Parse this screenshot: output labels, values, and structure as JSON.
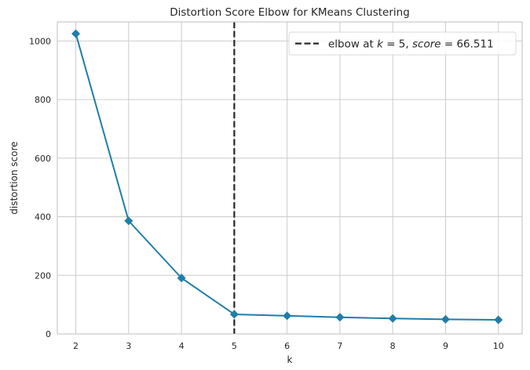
{
  "chart_data": {
    "type": "line",
    "title": "Distortion Score Elbow for KMeans Clustering",
    "xlabel": "k",
    "ylabel": "distortion score",
    "x": [
      2,
      3,
      4,
      5,
      6,
      7,
      8,
      9,
      10
    ],
    "series": [
      {
        "values": [
          1025,
          386,
          191,
          67,
          62,
          57,
          53,
          50,
          48
        ],
        "color": "#1f7ea8",
        "marker": "diamond"
      }
    ],
    "xlim": [
      1.65,
      10.45
    ],
    "ylim": [
      0,
      1065
    ],
    "xticks": [
      2,
      3,
      4,
      5,
      6,
      7,
      8,
      9,
      10
    ],
    "yticks": [
      0,
      200,
      400,
      600,
      800,
      1000
    ],
    "grid": true,
    "elbow": {
      "k": 5,
      "score_text": "66.511",
      "line_style": "dashed",
      "color": "#262626"
    },
    "legend": {
      "placement": "top-right",
      "prefix": "elbow at ",
      "k_symbol": "k",
      "eq1": " = 5, ",
      "score_symbol": "score",
      "eq2": " = 66.511"
    },
    "colors": {
      "grid": "#cccccc",
      "axes": "#bfbfbf",
      "text": "#262626"
    }
  }
}
